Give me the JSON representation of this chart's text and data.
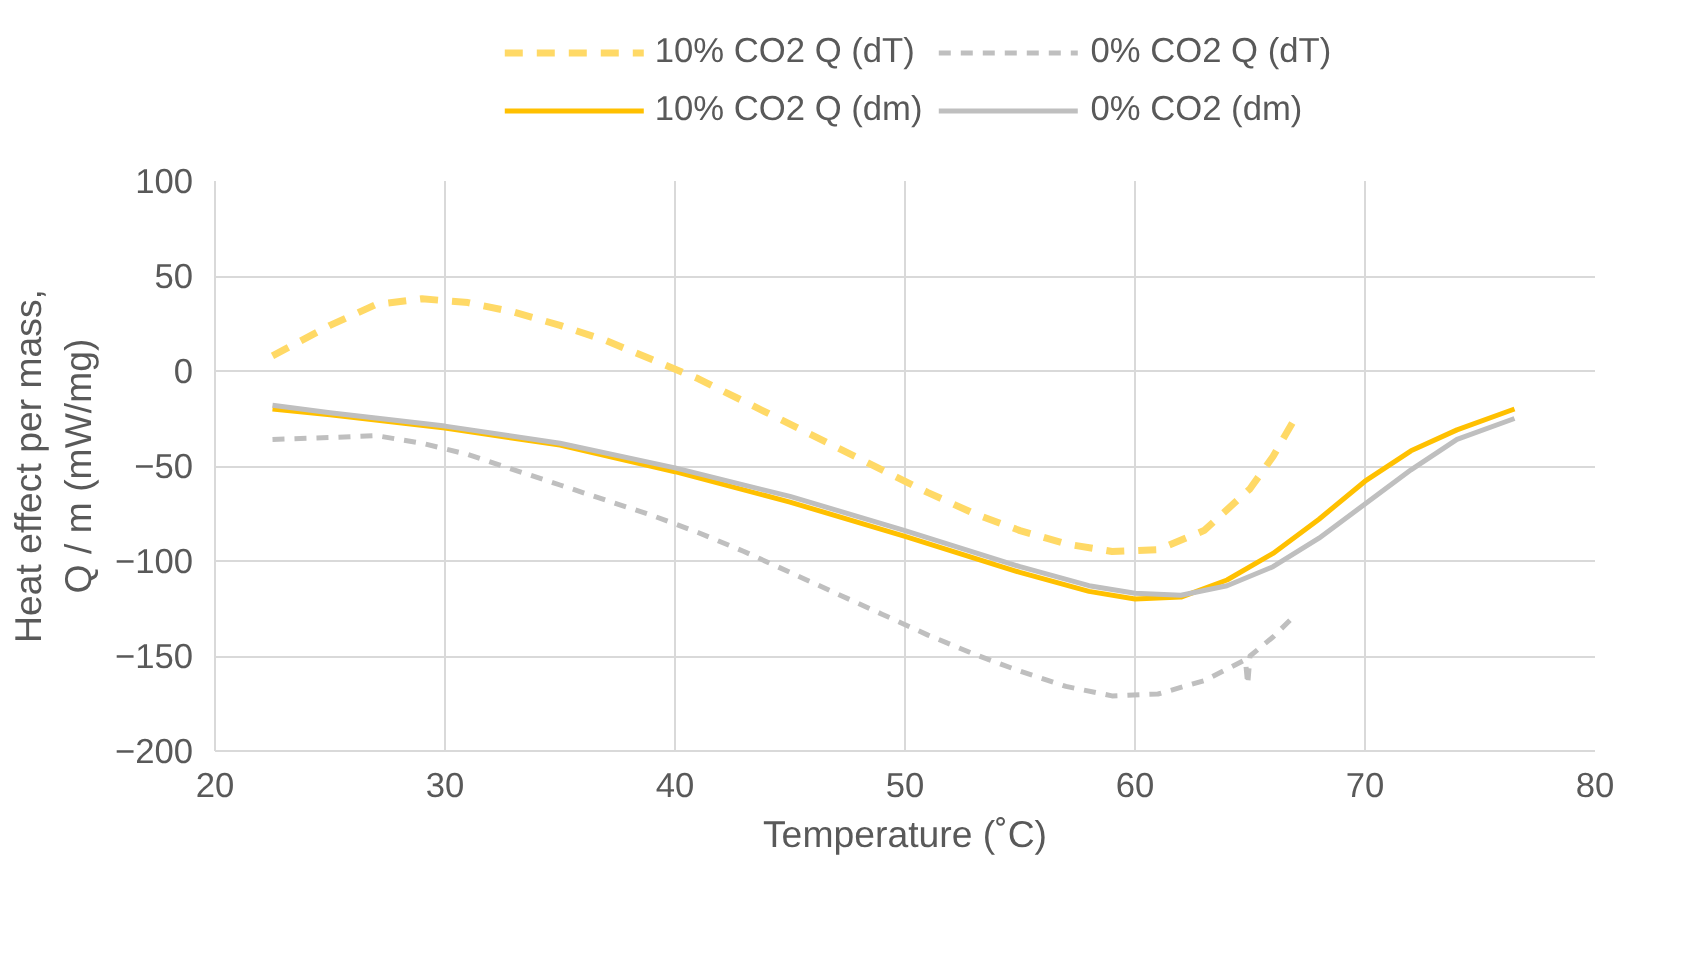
{
  "chart_data": {
    "type": "line",
    "xlabel": "Temperature (˚C)",
    "ylabel": "Heat effect per mass,\nQ / m (mW/mg)",
    "xlim": [
      20,
      80
    ],
    "xticks": [
      20,
      30,
      40,
      50,
      60,
      70,
      80
    ],
    "ylim": [
      -200,
      100
    ],
    "yticks": [
      -200,
      -150,
      -100,
      -50,
      0,
      50,
      100
    ],
    "grid": true,
    "legend": "top",
    "marker": "none",
    "series": [
      {
        "name": "10% CO2 Q (dT)",
        "color": "#ffd966",
        "line_style": "dashed",
        "x": [
          22.5,
          25,
          27,
          29,
          31,
          33,
          35,
          37,
          39,
          41,
          43,
          45,
          47,
          49,
          51,
          53,
          55,
          57,
          59,
          61,
          63,
          65,
          66,
          67
        ],
        "values": [
          8,
          24,
          35,
          38,
          36,
          31,
          24,
          16,
          6,
          -4,
          -16,
          -28,
          -40,
          -52,
          -64,
          -75,
          -84,
          -91,
          -95,
          -94,
          -84,
          -62,
          -45,
          -24
        ]
      },
      {
        "name": "0% CO2 Q (dT)",
        "color": "#bfbfbf",
        "line_style": "dashed",
        "x": [
          22.5,
          25,
          27,
          29,
          31,
          33,
          35,
          37,
          39,
          41,
          43,
          45,
          47,
          49,
          51,
          53,
          55,
          57,
          59,
          61,
          63,
          64.8,
          64.9,
          65,
          66,
          67
        ],
        "values": [
          -36,
          -35,
          -34,
          -38,
          -44,
          -52,
          -60,
          -68,
          -76,
          -85,
          -95,
          -106,
          -117,
          -128,
          -139,
          -149,
          -158,
          -166,
          -171,
          -170,
          -163,
          -152,
          -165,
          -150,
          -140,
          -128
        ]
      },
      {
        "name": "10% CO2 Q (dm)",
        "color": "#ffc000",
        "line_style": "solid",
        "x": [
          22.5,
          25,
          30,
          35,
          40,
          45,
          50,
          55,
          58,
          60,
          62,
          64,
          66,
          68,
          70,
          72,
          74,
          76.5
        ],
        "values": [
          -20,
          -23,
          -30,
          -39,
          -53,
          -69,
          -87,
          -106,
          -116,
          -120,
          -119,
          -110,
          -96,
          -78,
          -58,
          -42,
          -31,
          -20
        ]
      },
      {
        "name": "0% CO2 (dm)",
        "color": "#bfbfbf",
        "line_style": "solid",
        "x": [
          22.5,
          25,
          30,
          35,
          40,
          45,
          50,
          55,
          58,
          60,
          62,
          64,
          66,
          68,
          70,
          72,
          74,
          76.5
        ],
        "values": [
          -18,
          -22,
          -29,
          -38,
          -51,
          -66,
          -84,
          -103,
          -113,
          -117,
          -118,
          -113,
          -103,
          -88,
          -70,
          -52,
          -36,
          -25
        ]
      }
    ]
  }
}
